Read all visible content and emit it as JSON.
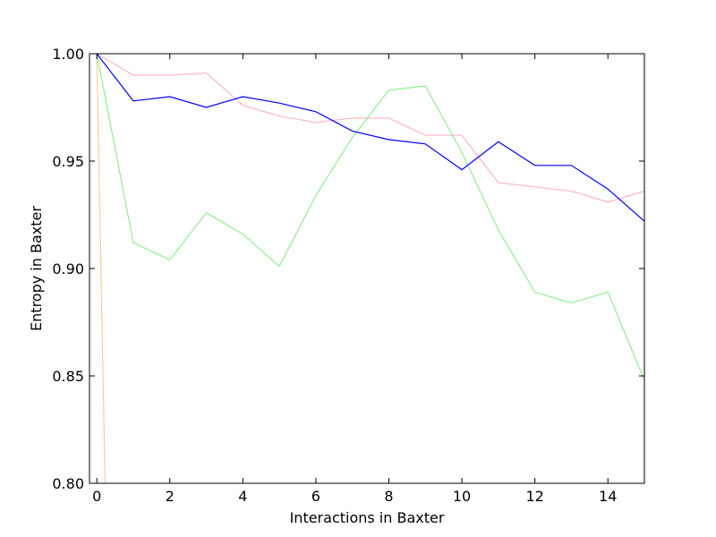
{
  "chart_data": {
    "type": "line",
    "title": "",
    "xlabel": "Interactions in Baxter",
    "ylabel": "Entropy in Baxter",
    "xlim": [
      -0.2,
      15
    ],
    "ylim": [
      0.8,
      1.0
    ],
    "xticks": [
      0,
      2,
      4,
      6,
      8,
      10,
      12,
      14
    ],
    "xtick_labels": [
      "0",
      "2",
      "4",
      "6",
      "8",
      "10",
      "12",
      "14"
    ],
    "yticks": [
      0.8,
      0.85,
      0.9,
      0.95,
      1.0
    ],
    "ytick_labels": [
      "0.80",
      "0.85",
      "0.90",
      "0.95",
      "1.00"
    ],
    "grid": false,
    "legend": "none",
    "series": [
      {
        "color": "#ffcc99",
        "x": [
          0,
          0.25
        ],
        "y": [
          1.0,
          0.78
        ]
      },
      {
        "color": "#ffb6c1",
        "x": [
          0,
          1,
          2,
          3,
          4,
          5,
          6,
          7,
          8,
          9,
          10,
          11,
          12,
          13,
          14,
          15
        ],
        "y": [
          1.0,
          0.99,
          0.99,
          0.991,
          0.976,
          0.971,
          0.968,
          0.97,
          0.97,
          0.962,
          0.962,
          0.94,
          0.938,
          0.936,
          0.931,
          0.936
        ]
      },
      {
        "color": "#90ee90",
        "x": [
          0,
          1,
          2,
          3,
          4,
          5,
          6,
          7,
          8,
          9,
          10,
          11,
          12,
          13,
          14,
          15
        ],
        "y": [
          1.0,
          0.912,
          0.904,
          0.926,
          0.916,
          0.901,
          0.934,
          0.961,
          0.983,
          0.985,
          0.954,
          0.918,
          0.889,
          0.884,
          0.889,
          0.848
        ]
      },
      {
        "color": "#0000ff",
        "x": [
          0,
          1,
          2,
          3,
          4,
          5,
          6,
          7,
          8,
          9,
          10,
          11,
          12,
          13,
          14,
          15
        ],
        "y": [
          1.0,
          0.978,
          0.98,
          0.975,
          0.98,
          0.977,
          0.973,
          0.964,
          0.96,
          0.958,
          0.946,
          0.959,
          0.948,
          0.948,
          0.937,
          0.922
        ]
      }
    ]
  }
}
